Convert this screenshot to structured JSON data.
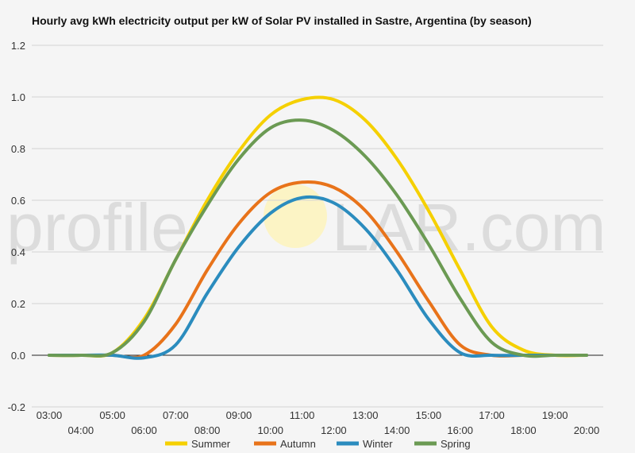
{
  "watermark": {
    "left": "profile",
    "right": "LAR.com",
    "sun_color": "#fff3b0"
  },
  "chart_data": {
    "type": "line",
    "title": "Hourly avg kWh electricity output per kW of Solar PV installed in Sastre, Argentina (by season)",
    "xlabel": "",
    "ylabel": "",
    "ylim": [
      -0.2,
      1.2
    ],
    "yticks": [
      -0.2,
      0.0,
      0.2,
      0.4,
      0.6,
      0.8,
      1.0,
      1.2
    ],
    "ytick_labels": [
      "-0.2",
      "0.0",
      "0.2",
      "0.4",
      "0.6",
      "0.8",
      "1.0",
      "1.2"
    ],
    "x_tick_labels": [
      "03:00",
      "04:00",
      "05:00",
      "06:00",
      "07:00",
      "08:00",
      "09:00",
      "10:00",
      "11:00",
      "12:00",
      "13:00",
      "14:00",
      "15:00",
      "16:00",
      "17:00",
      "18:00",
      "19:00",
      "20:00"
    ],
    "grid": true,
    "legend_position": "bottom",
    "x": [
      3,
      4,
      5,
      6,
      7,
      8,
      9,
      10,
      11,
      12,
      13,
      14,
      15,
      16,
      17,
      18,
      19,
      20
    ],
    "series": [
      {
        "name": "Summer",
        "color": "#f5d000",
        "values": [
          0.0,
          0.0,
          0.01,
          0.14,
          0.37,
          0.6,
          0.79,
          0.93,
          0.99,
          0.99,
          0.91,
          0.76,
          0.56,
          0.33,
          0.11,
          0.02,
          0.0,
          0.0
        ]
      },
      {
        "name": "Autumn",
        "color": "#e8731a",
        "values": [
          0.0,
          0.0,
          0.0,
          0.0,
          0.12,
          0.33,
          0.51,
          0.63,
          0.67,
          0.65,
          0.56,
          0.4,
          0.21,
          0.04,
          0.0,
          0.0,
          0.0,
          0.0
        ]
      },
      {
        "name": "Winter",
        "color": "#2b8cbe",
        "values": [
          0.0,
          0.0,
          0.0,
          -0.01,
          0.04,
          0.24,
          0.42,
          0.55,
          0.61,
          0.59,
          0.49,
          0.33,
          0.14,
          0.01,
          0.0,
          0.0,
          0.0,
          0.0
        ]
      },
      {
        "name": "Spring",
        "color": "#6b9a53",
        "values": [
          0.0,
          0.0,
          0.01,
          0.13,
          0.37,
          0.58,
          0.76,
          0.88,
          0.91,
          0.87,
          0.77,
          0.62,
          0.43,
          0.22,
          0.05,
          0.0,
          0.0,
          0.0
        ]
      }
    ]
  }
}
